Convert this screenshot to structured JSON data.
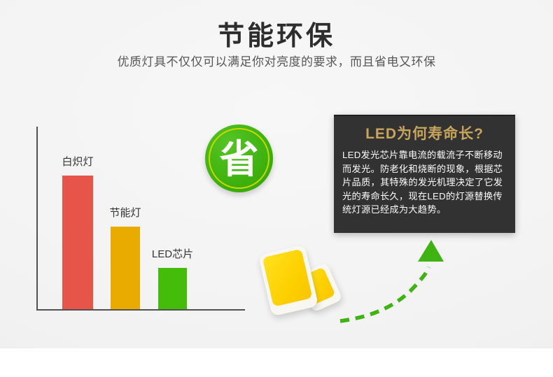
{
  "header": {
    "title": "节能环保",
    "subtitle": "优质灯具不仅仅可以满足你对亮度的要求，而且省电又环保"
  },
  "badge": {
    "label": "省",
    "color": "#3fb30f",
    "ring_color": "#c6d800"
  },
  "chart_data": {
    "type": "bar",
    "title": "",
    "xlabel": "",
    "ylabel": "",
    "categories": [
      "白炽灯",
      "节能灯",
      "LED芯片"
    ],
    "values": [
      100,
      62,
      31
    ],
    "colors": [
      "#e7554a",
      "#eaab01",
      "#43bc0a"
    ],
    "ylim": [
      0,
      100
    ],
    "grid": false,
    "legend": "none"
  },
  "info_box": {
    "title": "LED为何寿命长?",
    "body": "LED发光芯片靠电流的载流子不断移动而发光。防老化和烧断的现象，根据芯片品质，其特殊的发光机理决定了它发光的寿命长久，现在LED的灯源替换传统灯源已经成为大趋势。",
    "title_color": "#c7a55b",
    "background": "#323232"
  },
  "arrow": {
    "color": "#3fb312"
  }
}
